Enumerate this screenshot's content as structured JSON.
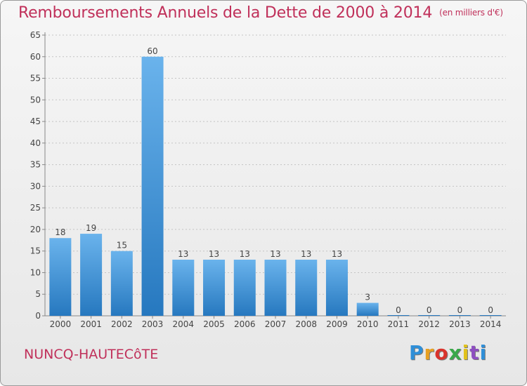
{
  "title": "Remboursements Annuels de la Dette de 2000 à 2014",
  "title_unit": "(en milliers d'€)",
  "commune": "NUNCQ-HAUTECôTE",
  "logo": {
    "letters": [
      "P",
      "r",
      "o",
      "x",
      "i",
      "t",
      "i"
    ],
    "colors": [
      "#2f8fd8",
      "#e7a022",
      "#d9332c",
      "#3aa84a",
      "#e1c21c",
      "#8d4fc0",
      "#2f8fd8"
    ]
  },
  "colors": {
    "title": "#c0305a",
    "bar_light": "#6ab3ec",
    "bar_dark": "#2678bf"
  },
  "chart_data": {
    "type": "bar",
    "title": "Remboursements Annuels de la Dette de 2000 à 2014",
    "categories": [
      "2000",
      "2001",
      "2002",
      "2003",
      "2004",
      "2005",
      "2006",
      "2007",
      "2008",
      "2009",
      "2010",
      "2011",
      "2012",
      "2013",
      "2014"
    ],
    "values": [
      18,
      19,
      15,
      60,
      13,
      13,
      13,
      13,
      13,
      13,
      3,
      0,
      0,
      0,
      0
    ],
    "data_labels": [
      "18",
      "19",
      "15",
      "60",
      "13",
      "13",
      "13",
      "13",
      "13",
      "13",
      "3",
      "0",
      "0",
      "0",
      "0"
    ],
    "ylim": [
      0,
      65
    ],
    "yticks": [
      0,
      5,
      10,
      15,
      20,
      25,
      30,
      35,
      40,
      45,
      50,
      55,
      60,
      65
    ],
    "grid": "horizontal dotted",
    "legend": "none"
  }
}
